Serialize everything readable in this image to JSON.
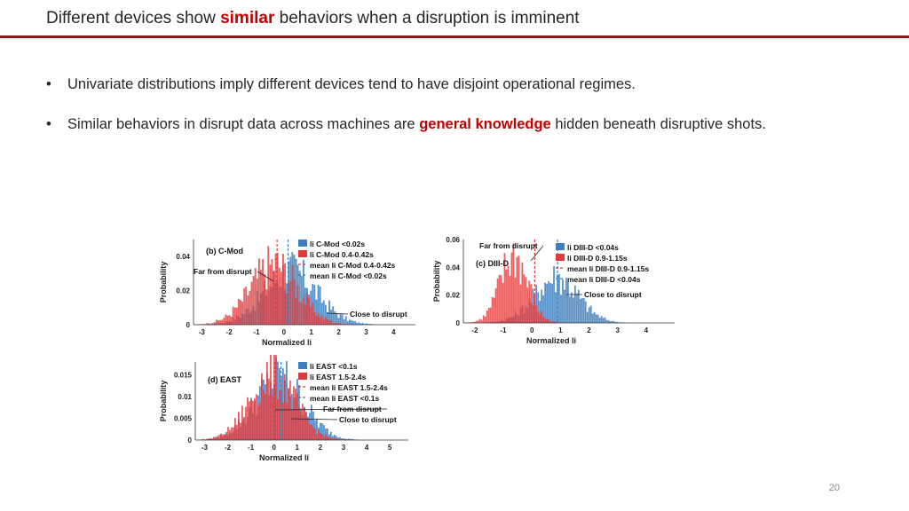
{
  "slide": {
    "title_before": "Different devices show ",
    "title_highlight": "similar",
    "title_after": " behaviors when a disruption is imminent",
    "bullets": [
      {
        "text": "Univariate distributions imply different devices tend to have disjoint operational regimes."
      },
      {
        "before": "Similar behaviors in disrupt data across machines are ",
        "highlight": "general knowledge",
        "after": " hidden beneath disruptive shots."
      }
    ],
    "bullet_symbol": "•",
    "page_number": "20",
    "accent_color": "#c00000",
    "rule_color": "#8b1a1a"
  },
  "chart_data": [
    {
      "type": "histogram",
      "panel": "(b) C-Mod",
      "xlabel": "Normalized li",
      "ylabel": "Probability",
      "xlim": [
        -3.3,
        4.8
      ],
      "ylim": [
        0,
        0.05
      ],
      "xticks": [
        "-3",
        "-2",
        "-1",
        "0",
        "1",
        "2",
        "3",
        "4"
      ],
      "yticks": [
        "0",
        "0.02",
        "0.04"
      ],
      "legend": [
        "li C-Mod <0.02s",
        "li C-Mod 0.4-0.42s",
        "mean li C-Mod 0.4-0.42s",
        "mean li C-Mod <0.02s"
      ],
      "annotations": [
        "Far from disrupt",
        "Close to disrupt"
      ],
      "series": [
        {
          "name": "li C-Mod <0.02s",
          "color": "#3d7fc1",
          "peak": 0.3,
          "width": 1.0,
          "height": 0.032
        },
        {
          "name": "li C-Mod 0.4-0.42s",
          "color": "#e03a3a",
          "peak": -0.3,
          "width": 0.9,
          "height": 0.036
        }
      ],
      "mean_lines": [
        -0.25,
        0.15
      ]
    },
    {
      "type": "histogram",
      "panel": "(c) DIII-D",
      "xlabel": "Normalized li",
      "ylabel": "Probability",
      "xlim": [
        -2.4,
        5.0
      ],
      "ylim": [
        0,
        0.06
      ],
      "xticks": [
        "-2",
        "-1",
        "0",
        "1",
        "2",
        "3",
        "4"
      ],
      "yticks": [
        "0",
        "0.02",
        "0.04",
        "0.06"
      ],
      "legend": [
        "li DIII-D <0.04s",
        "li DIII-D 0.9-1.15s",
        "mean li DIII-D 0.9-1.15s",
        "mean li DIII-D <0.04s"
      ],
      "annotations": [
        "Far from disrupt",
        "Close to disrupt"
      ],
      "series": [
        {
          "name": "li DIII-D <0.04s",
          "color": "#3d7fc1",
          "peak": 0.9,
          "width": 0.8,
          "height": 0.033
        },
        {
          "name": "li DIII-D 0.9-1.15s",
          "color": "#e03a3a",
          "peak": -0.6,
          "width": 0.5,
          "height": 0.05
        }
      ],
      "mean_lines": [
        0.1,
        0.9
      ]
    },
    {
      "type": "histogram",
      "panel": "(d) EAST",
      "xlabel": "Normalized li",
      "ylabel": "Probability",
      "xlim": [
        -3.4,
        5.8
      ],
      "ylim": [
        0,
        0.018
      ],
      "xticks": [
        "-3",
        "-2",
        "-1",
        "0",
        "1",
        "2",
        "3",
        "4",
        "5"
      ],
      "yticks": [
        "0",
        "0.005",
        "0.01",
        "0.015"
      ],
      "legend": [
        "li EAST <0.1s",
        "li EAST 1.5-2.4s",
        "mean li EAST 1.5-2.4s",
        "mean li EAST <0.1s"
      ],
      "annotations": [
        "Far from disrupt",
        "Close to disrupt"
      ],
      "series": [
        {
          "name": "li EAST <0.1s",
          "color": "#3d7fc1",
          "peak": 0.3,
          "width": 1.1,
          "height": 0.0145
        },
        {
          "name": "li EAST 1.5-2.4s",
          "color": "#e03a3a",
          "peak": 0.0,
          "width": 1.0,
          "height": 0.0155
        }
      ],
      "mean_lines": [
        0.05,
        0.3
      ]
    }
  ]
}
